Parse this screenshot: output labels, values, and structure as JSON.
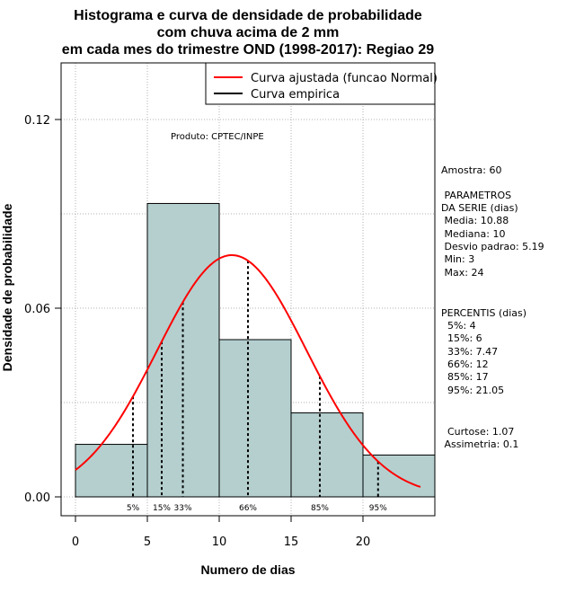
{
  "chart_data": {
    "type": "bar",
    "title_lines": [
      "Histograma e curva de densidade de probabilidade",
      "com chuva acima de 2 mm",
      "em cada mes do trimestre OND (1998-2017): Regiao 29"
    ],
    "xlabel": "Numero de dias",
    "ylabel": "Densidade de probabilidade",
    "xlim": [
      -1,
      25
    ],
    "ylim": [
      -0.006,
      0.138
    ],
    "xticks": [
      0,
      5,
      10,
      15,
      20
    ],
    "yticks": [
      0.0,
      0.06,
      0.12
    ],
    "ytick_labels": [
      "0.00",
      "0.06",
      "0.12"
    ],
    "grid": true,
    "bins": [
      {
        "from": 0,
        "to": 5,
        "density": 0.0167
      },
      {
        "from": 5,
        "to": 10,
        "density": 0.0933
      },
      {
        "from": 10,
        "to": 15,
        "density": 0.05
      },
      {
        "from": 15,
        "to": 20,
        "density": 0.0267
      },
      {
        "from": 20,
        "to": 25,
        "density": 0.0133
      }
    ],
    "normal_fit": {
      "mean": 10.88,
      "sd": 5.19,
      "x_from": 0,
      "x_to": 24
    },
    "percentile_lines": [
      {
        "label": "5%",
        "x": 4
      },
      {
        "label": "15%",
        "x": 6
      },
      {
        "label": "33%",
        "x": 7.47
      },
      {
        "label": "66%",
        "x": 12
      },
      {
        "label": "85%",
        "x": 17
      },
      {
        "label": "95%",
        "x": 21.05
      }
    ],
    "legend": {
      "position": "top-right",
      "entries": [
        {
          "label": "Curva ajustada (funcao Normal)",
          "color": "#ff0000"
        },
        {
          "label": "Curva empirica",
          "color": "#000000"
        }
      ]
    },
    "annotation": "Produto: CPTEC/INPE",
    "colors": {
      "bar_fill": "#b5cfcf",
      "curve": "#ff0000",
      "grid": "#b0b0b0"
    }
  },
  "stats_panel": {
    "sample": "Amostra: 60",
    "params_header": [
      " PARAMETROS",
      "DA SERIE (dias)"
    ],
    "params": [
      " Media: 10.88",
      " Mediana: 10",
      " Desvio padrao: 5.19",
      " Min: 3",
      " Max: 24"
    ],
    "percentis_header": "PERCENTIS (dias)",
    "percentis": [
      "  5%: 4",
      "  15%: 6",
      "  33%: 7.47",
      "  66%: 12",
      "  85%: 17",
      "  95%: 21.05"
    ],
    "shape": [
      "  Curtose: 1.07",
      " Assimetria: 0.1"
    ]
  }
}
